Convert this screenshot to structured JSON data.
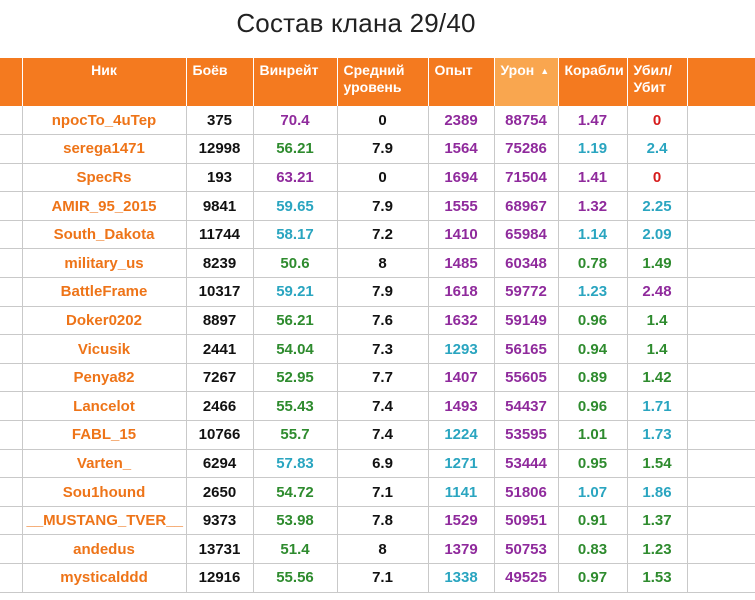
{
  "title": "Состав клана 29/40",
  "headers": {
    "nick": "Ник",
    "battles": "Боёв",
    "winrate": "Винрейт",
    "avg_level_1": "Средний",
    "avg_level_2": "уровень",
    "exp": "Опыт",
    "damage": "Урон",
    "ships": "Корабли",
    "kd_1": "Убил/",
    "kd_2": "Убит",
    "sort_icon": "sort-desc-arrow-icon"
  },
  "colors": {
    "header_bg": "#f47a1f",
    "sorted_header_bg": "#f9a64f",
    "nick": "#ee7418",
    "purple": "#8f2a9c",
    "green": "#2e8b2e",
    "teal": "#2aa5c0",
    "red": "#d61b1b"
  },
  "rows": [
    {
      "nick": "npocTo_4uTep",
      "battles": "375",
      "winrate": "70.4",
      "winrate_color": "purple",
      "avg_level": "0",
      "exp": "2389",
      "exp_color": "purple",
      "damage": "88754",
      "ships": "1.47",
      "ships_color": "purple",
      "kd": "0",
      "kd_color": "red"
    },
    {
      "nick": "serega1471",
      "battles": "12998",
      "winrate": "56.21",
      "winrate_color": "green",
      "avg_level": "7.9",
      "exp": "1564",
      "exp_color": "purple",
      "damage": "75286",
      "ships": "1.19",
      "ships_color": "teal",
      "kd": "2.4",
      "kd_color": "teal"
    },
    {
      "nick": "SpecRs",
      "battles": "193",
      "winrate": "63.21",
      "winrate_color": "purple",
      "avg_level": "0",
      "exp": "1694",
      "exp_color": "purple",
      "damage": "71504",
      "ships": "1.41",
      "ships_color": "purple",
      "kd": "0",
      "kd_color": "red"
    },
    {
      "nick": "AMIR_95_2015",
      "battles": "9841",
      "winrate": "59.65",
      "winrate_color": "teal",
      "avg_level": "7.9",
      "exp": "1555",
      "exp_color": "purple",
      "damage": "68967",
      "ships": "1.32",
      "ships_color": "purple",
      "kd": "2.25",
      "kd_color": "teal"
    },
    {
      "nick": "South_Dakota",
      "battles": "11744",
      "winrate": "58.17",
      "winrate_color": "teal",
      "avg_level": "7.2",
      "exp": "1410",
      "exp_color": "purple",
      "damage": "65984",
      "ships": "1.14",
      "ships_color": "teal",
      "kd": "2.09",
      "kd_color": "teal"
    },
    {
      "nick": "military_us",
      "battles": "8239",
      "winrate": "50.6",
      "winrate_color": "green",
      "avg_level": "8",
      "exp": "1485",
      "exp_color": "purple",
      "damage": "60348",
      "ships": "0.78",
      "ships_color": "green",
      "kd": "1.49",
      "kd_color": "green"
    },
    {
      "nick": "BattleFrame",
      "battles": "10317",
      "winrate": "59.21",
      "winrate_color": "teal",
      "avg_level": "7.9",
      "exp": "1618",
      "exp_color": "purple",
      "damage": "59772",
      "ships": "1.23",
      "ships_color": "teal",
      "kd": "2.48",
      "kd_color": "purple"
    },
    {
      "nick": "Doker0202",
      "battles": "8897",
      "winrate": "56.21",
      "winrate_color": "green",
      "avg_level": "7.6",
      "exp": "1632",
      "exp_color": "purple",
      "damage": "59149",
      "ships": "0.96",
      "ships_color": "green",
      "kd": "1.4",
      "kd_color": "green"
    },
    {
      "nick": "Vicusik",
      "battles": "2441",
      "winrate": "54.04",
      "winrate_color": "green",
      "avg_level": "7.3",
      "exp": "1293",
      "exp_color": "teal",
      "damage": "56165",
      "ships": "0.94",
      "ships_color": "green",
      "kd": "1.4",
      "kd_color": "green"
    },
    {
      "nick": "Penya82",
      "battles": "7267",
      "winrate": "52.95",
      "winrate_color": "green",
      "avg_level": "7.7",
      "exp": "1407",
      "exp_color": "purple",
      "damage": "55605",
      "ships": "0.89",
      "ships_color": "green",
      "kd": "1.42",
      "kd_color": "green"
    },
    {
      "nick": "Lancelot",
      "battles": "2466",
      "winrate": "55.43",
      "winrate_color": "green",
      "avg_level": "7.4",
      "exp": "1493",
      "exp_color": "purple",
      "damage": "54437",
      "ships": "0.96",
      "ships_color": "green",
      "kd": "1.71",
      "kd_color": "teal"
    },
    {
      "nick": "FABL_15",
      "battles": "10766",
      "winrate": "55.7",
      "winrate_color": "green",
      "avg_level": "7.4",
      "exp": "1224",
      "exp_color": "teal",
      "damage": "53595",
      "ships": "1.01",
      "ships_color": "green",
      "kd": "1.73",
      "kd_color": "teal"
    },
    {
      "nick": "Varten_",
      "battles": "6294",
      "winrate": "57.83",
      "winrate_color": "teal",
      "avg_level": "6.9",
      "exp": "1271",
      "exp_color": "teal",
      "damage": "53444",
      "ships": "0.95",
      "ships_color": "green",
      "kd": "1.54",
      "kd_color": "green"
    },
    {
      "nick": "Sou1hound",
      "battles": "2650",
      "winrate": "54.72",
      "winrate_color": "green",
      "avg_level": "7.1",
      "exp": "1141",
      "exp_color": "teal",
      "damage": "51806",
      "ships": "1.07",
      "ships_color": "teal",
      "kd": "1.86",
      "kd_color": "teal"
    },
    {
      "nick": "__MUSTANG_TVER__",
      "battles": "9373",
      "winrate": "53.98",
      "winrate_color": "green",
      "avg_level": "7.8",
      "exp": "1529",
      "exp_color": "purple",
      "damage": "50951",
      "ships": "0.91",
      "ships_color": "green",
      "kd": "1.37",
      "kd_color": "green"
    },
    {
      "nick": "andedus",
      "battles": "13731",
      "winrate": "51.4",
      "winrate_color": "green",
      "avg_level": "8",
      "exp": "1379",
      "exp_color": "purple",
      "damage": "50753",
      "ships": "0.83",
      "ships_color": "green",
      "kd": "1.23",
      "kd_color": "green"
    },
    {
      "nick": "mysticalddd",
      "battles": "12916",
      "winrate": "55.56",
      "winrate_color": "green",
      "avg_level": "7.1",
      "exp": "1338",
      "exp_color": "teal",
      "damage": "49525",
      "ships": "0.97",
      "ships_color": "green",
      "kd": "1.53",
      "kd_color": "green"
    }
  ]
}
